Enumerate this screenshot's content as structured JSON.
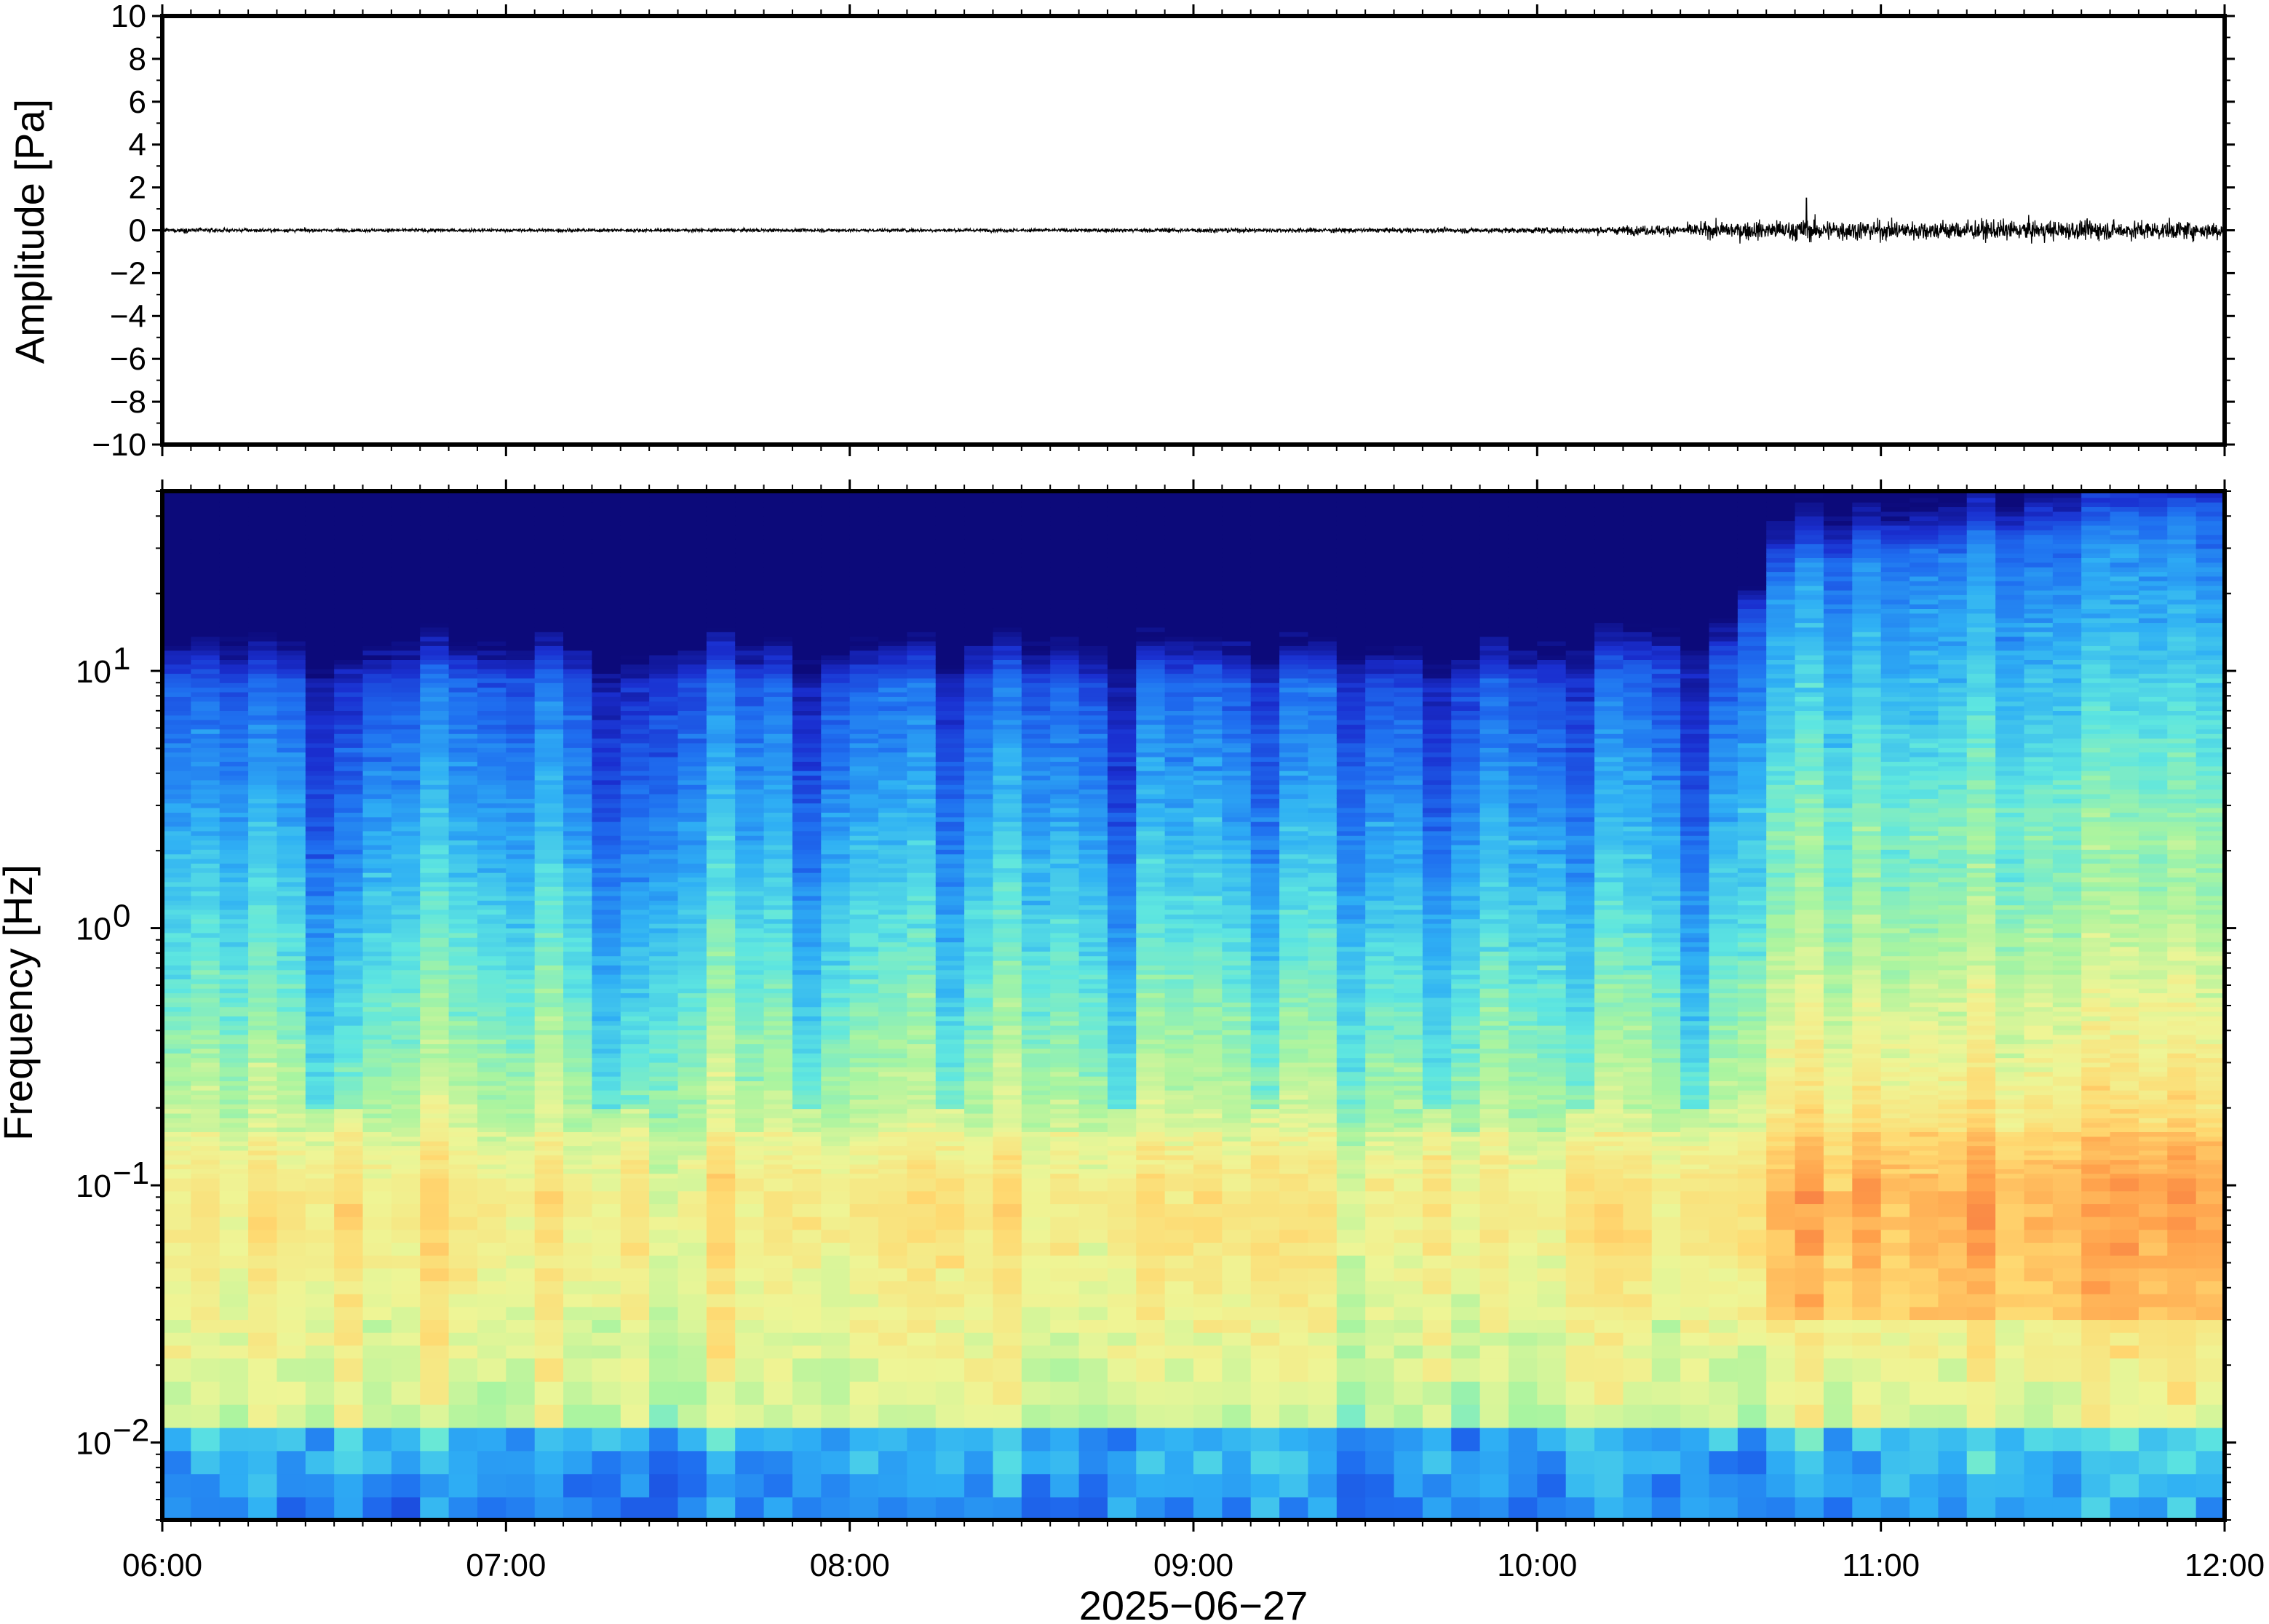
{
  "chart_data": [
    {
      "type": "line",
      "panel": "waveform",
      "ylabel": "Amplitude [Pa]",
      "xlabel": "",
      "ylim": [
        -10,
        10
      ],
      "yticks": [
        10,
        8,
        6,
        4,
        2,
        0,
        -2,
        -4,
        -6,
        -8,
        -10
      ],
      "ytick_labels": [
        "10",
        "8",
        "6",
        "4",
        "2",
        "0",
        "−2",
        "−4",
        "−6",
        "−8",
        "−10"
      ],
      "xlim": [
        "06:00",
        "12:00"
      ],
      "line_color": "#000000",
      "envelope": {
        "time_hours": [
          6.0,
          6.5,
          7.0,
          7.5,
          8.0,
          8.5,
          9.0,
          9.5,
          10.0,
          10.2,
          10.4,
          10.55,
          10.7,
          10.8,
          11.0,
          11.5,
          12.0
        ],
        "half_amplitude_pa": [
          0.2,
          0.15,
          0.15,
          0.15,
          0.15,
          0.15,
          0.2,
          0.2,
          0.25,
          0.35,
          0.5,
          0.8,
          0.9,
          1.0,
          0.9,
          0.9,
          0.8
        ]
      },
      "peak": {
        "time": "10:47",
        "value_pa": 1.5
      }
    },
    {
      "type": "heatmap",
      "panel": "spectrogram",
      "ylabel": "Frequency [Hz]",
      "xlabel": "2025−06−27",
      "yscale": "log",
      "ylim_hz": [
        0.005,
        50
      ],
      "yticks_hz": [
        0.01,
        0.1,
        1,
        10
      ],
      "ytick_labels": [
        {
          "base": "10",
          "exp": "−2"
        },
        {
          "base": "10",
          "exp": "−1"
        },
        {
          "base": "10",
          "exp": "0"
        },
        {
          "base": "10",
          "exp": "1"
        }
      ],
      "xlim": [
        "06:00",
        "12:00"
      ],
      "xtick_labels": [
        "06:00",
        "07:00",
        "08:00",
        "09:00",
        "10:00",
        "11:00",
        "12:00"
      ],
      "colormap": [
        "#0c0a7a",
        "#1a2fd0",
        "#1f6ff0",
        "#2fb0f4",
        "#5ee6e0",
        "#a8f4a0",
        "#eef596",
        "#ffd870",
        "#ff9f4a",
        "#ee5a3c"
      ],
      "energy_increase_time": "10:33"
    }
  ]
}
